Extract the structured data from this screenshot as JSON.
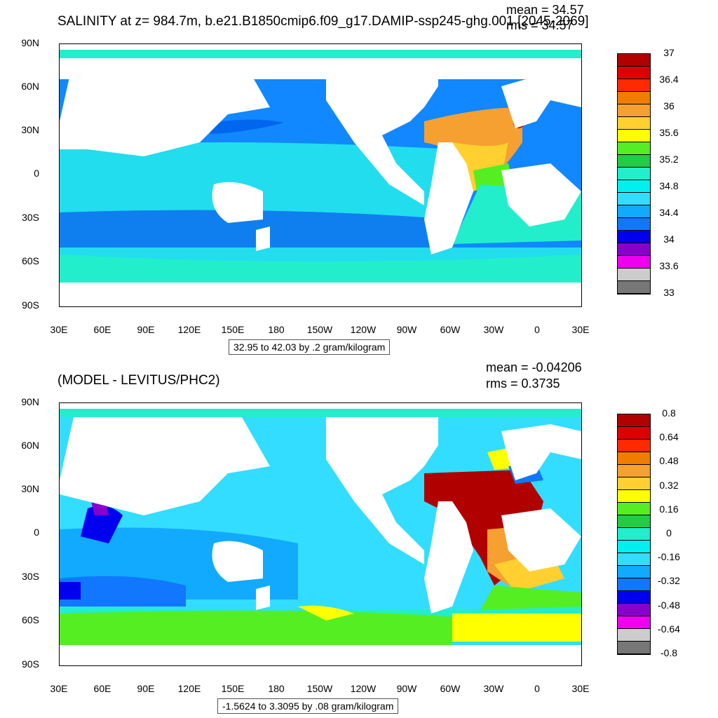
{
  "top": {
    "title": "SALINITY at z= 984.7m, b.e21.B1850cmip6.f09_g17.DAMIP-ssp245-ghg.001 [2045-2069]",
    "mean": "mean = 34.57",
    "rms": "rms = 34.57",
    "range": "32.95 to 42.03 by .2 gram/kilogram",
    "colorbar_labels": [
      "37",
      "36.4",
      "36",
      "35.6",
      "35.2",
      "34.8",
      "34.4",
      "34",
      "33.6",
      "33"
    ],
    "colorbar_colors": [
      "#b00000",
      "#dd0000",
      "#ff2a00",
      "#f07d00",
      "#f5a030",
      "#ffd030",
      "#ffff00",
      "#55ee22",
      "#22cc44",
      "#22eecc",
      "#00f0f0",
      "#33ddff",
      "#11aaff",
      "#1177ff",
      "#0000ee",
      "#8800cc",
      "#ee00ee",
      "#cccccc",
      "#777777"
    ]
  },
  "bottom": {
    "title": "(MODEL - LEVITUS/PHC2)",
    "mean": "mean = -0.04206",
    "rms": "rms = 0.3735",
    "range": "-1.5624 to 3.3095 by .08 gram/kilogram",
    "colorbar_labels": [
      "0.8",
      "0.64",
      "0.48",
      "0.32",
      "0.16",
      "0",
      "-0.16",
      "-0.32",
      "-0.48",
      "-0.64",
      "-0.8"
    ],
    "colorbar_colors": [
      "#b00000",
      "#dd0000",
      "#ff2a00",
      "#f07d00",
      "#f5a030",
      "#ffd030",
      "#ffff00",
      "#55ee22",
      "#22cc44",
      "#22eecc",
      "#00f0f0",
      "#33ddff",
      "#11aaff",
      "#1177ff",
      "#0000ee",
      "#8800cc",
      "#ee00ee",
      "#cccccc",
      "#777777"
    ]
  },
  "lat_labels": [
    "90N",
    "60N",
    "30N",
    "0",
    "30S",
    "60S",
    "90S"
  ],
  "lon_labels": [
    "30E",
    "60E",
    "90E",
    "120E",
    "150E",
    "180",
    "150W",
    "120W",
    "90W",
    "60W",
    "30W",
    "0",
    "30E"
  ]
}
